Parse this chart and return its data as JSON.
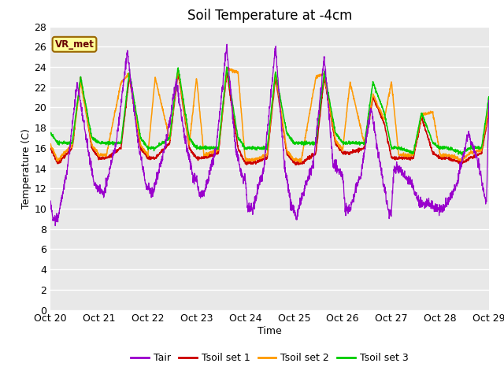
{
  "title": "Soil Temperature at -4cm",
  "xlabel": "Time",
  "ylabel": "Temperature (C)",
  "ylim": [
    0,
    28
  ],
  "yticks": [
    0,
    2,
    4,
    6,
    8,
    10,
    12,
    14,
    16,
    18,
    20,
    22,
    24,
    26,
    28
  ],
  "xtick_labels": [
    "Oct 20",
    "Oct 21",
    "Oct 22",
    "Oct 23",
    "Oct 24",
    "Oct 25",
    "Oct 26",
    "Oct 27",
    "Oct 28",
    "Oct 29"
  ],
  "colors": {
    "Tair": "#9900cc",
    "Tsoil1": "#cc0000",
    "Tsoil2": "#ff9900",
    "Tsoil3": "#00cc00"
  },
  "fig_bg_color": "#ffffff",
  "plot_bg_color": "#e8e8e8",
  "grid_color": "#ffffff",
  "annotation_box_color": "#ffff99",
  "annotation_box_edge": "#996600",
  "annotation_text": "VR_met",
  "annotation_text_color": "#660000",
  "legend_entries": [
    "Tair",
    "Tsoil set 1",
    "Tsoil set 2",
    "Tsoil set 3"
  ],
  "title_fontsize": 12,
  "axis_label_fontsize": 9,
  "tick_fontsize": 9
}
